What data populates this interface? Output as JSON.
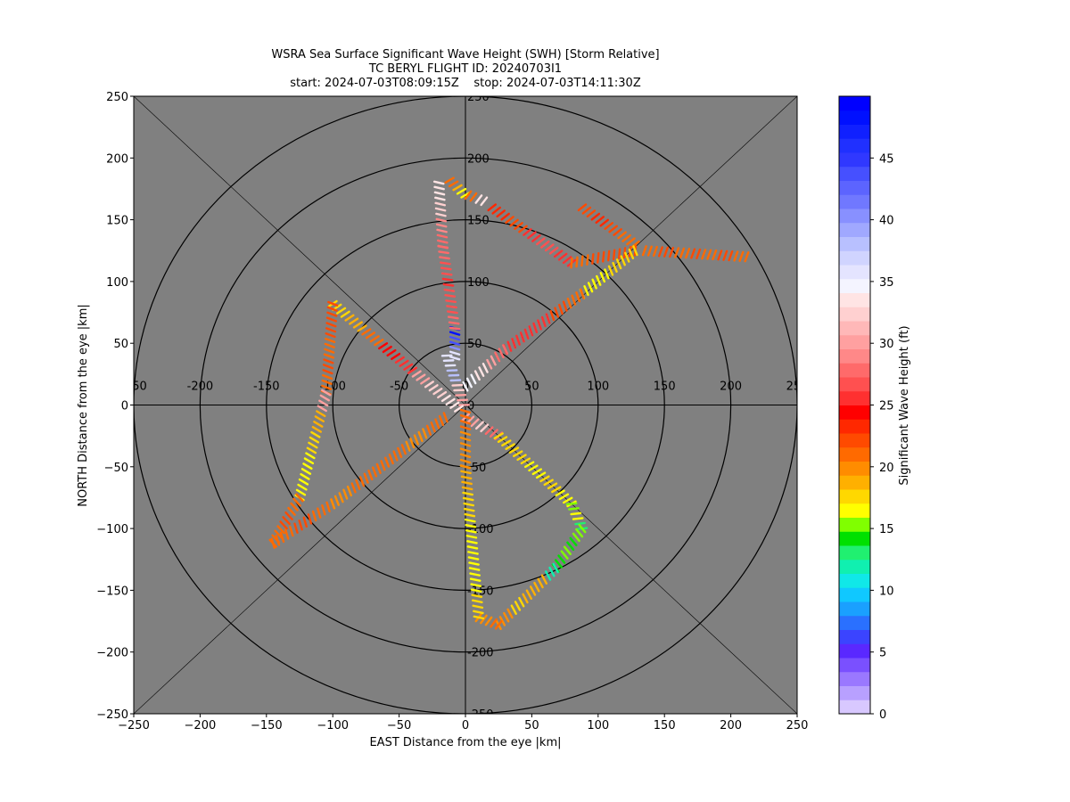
{
  "chart_data": {
    "type": "scatter",
    "title_lines": [
      "WSRA Sea Surface Significant Wave Height (SWH) [Storm Relative]",
      "TC BERYL FLIGHT ID: 20240703I1",
      "start: 2024-07-03T08:09:15Z    stop: 2024-07-03T14:11:30Z"
    ],
    "xlabel": "EAST Distance from the eye |km|",
    "ylabel": "NORTH Distance from the eye |km|",
    "xlim": [
      -250,
      250
    ],
    "ylim": [
      -250,
      250
    ],
    "xticks": [
      -250,
      -200,
      -150,
      -100,
      -50,
      0,
      50,
      100,
      150,
      200,
      250
    ],
    "yticks": [
      -250,
      -200,
      -150,
      -100,
      -50,
      0,
      50,
      100,
      150,
      200,
      250
    ],
    "range_rings_km": [
      50,
      100,
      150,
      200,
      250
    ],
    "background_color": "#808080",
    "colorbar": {
      "label": "Significant Wave Height (ft)",
      "ticks": [
        0,
        5,
        10,
        15,
        20,
        25,
        30,
        35,
        40,
        45
      ],
      "range": [
        0,
        50
      ],
      "colors": [
        "#d8c8ff",
        "#b8a0ff",
        "#9a78ff",
        "#7a50ff",
        "#5a28ff",
        "#3b44ff",
        "#2a70ff",
        "#1aa0ff",
        "#10c8ff",
        "#10e8e8",
        "#10f0b0",
        "#20f070",
        "#00e000",
        "#80ff00",
        "#ffff00",
        "#ffd800",
        "#ffb000",
        "#ff8c00",
        "#ff6a00",
        "#ff4a00",
        "#ff2800",
        "#ff0000",
        "#ff3030",
        "#ff5050",
        "#ff6a6a",
        "#ff8888",
        "#ffa0a0",
        "#ffb8b8",
        "#ffd0d0",
        "#ffe4e4",
        "#f4f4ff",
        "#e4e4ff",
        "#d0d4ff",
        "#b8c0ff",
        "#a0a8ff",
        "#8890ff",
        "#7078ff",
        "#5c64ff",
        "#4650ff",
        "#3038ff",
        "#2030ff",
        "#1020ff",
        "#0010ff",
        "#0000ff"
      ]
    },
    "track_segments": [
      {
        "from": [
          -1,
          0
        ],
        "to": [
          -14,
          40
        ],
        "values": [
          30,
          32,
          38,
          36
        ]
      },
      {
        "from": [
          -8,
          38
        ],
        "to": [
          -8,
          62
        ],
        "values": [
          36,
          40,
          44,
          48
        ]
      },
      {
        "from": [
          -8,
          62
        ],
        "to": [
          -17,
          128
        ],
        "values": [
          28,
          27,
          27,
          26,
          27,
          28
        ]
      },
      {
        "from": [
          -17,
          128
        ],
        "to": [
          -20,
          180
        ],
        "values": [
          28,
          29,
          32,
          34
        ]
      },
      {
        "from": [
          -12,
          182
        ],
        "to": [
          0,
          170
        ],
        "values": [
          21,
          19,
          16
        ]
      },
      {
        "from": [
          2,
          170
        ],
        "to": [
          14,
          165
        ],
        "values": [
          21,
          33
        ]
      },
      {
        "from": [
          20,
          160
        ],
        "to": [
          80,
          115
        ],
        "values": [
          23,
          22,
          25,
          27,
          26
        ]
      },
      {
        "from": [
          80,
          115
        ],
        "to": [
          128,
          125
        ],
        "values": [
          21,
          22,
          22
        ]
      },
      {
        "from": [
          135,
          125
        ],
        "to": [
          212,
          120
        ],
        "values": [
          21,
          22,
          21,
          22,
          21,
          22,
          21
        ]
      },
      {
        "from": [
          88,
          160
        ],
        "to": [
          128,
          130
        ],
        "values": [
          22,
          23,
          22,
          21
        ]
      },
      {
        "from": [
          128,
          125
        ],
        "to": [
          88,
          90
        ],
        "values": [
          18,
          18,
          17,
          17
        ]
      },
      {
        "from": [
          88,
          90
        ],
        "to": [
          30,
          45
        ],
        "values": [
          21,
          22,
          25,
          26,
          26
        ]
      },
      {
        "from": [
          30,
          45
        ],
        "to": [
          0,
          15
        ],
        "values": [
          28,
          30,
          33,
          35
        ]
      },
      {
        "from": [
          -5,
          -3
        ],
        "to": [
          -40,
          28
        ],
        "values": [
          34,
          32,
          30
        ]
      },
      {
        "from": [
          -40,
          28
        ],
        "to": [
          -100,
          82
        ],
        "values": [
          26,
          24,
          21,
          19,
          18
        ]
      },
      {
        "from": [
          -100,
          82
        ],
        "to": [
          -105,
          10
        ],
        "values": [
          22,
          22,
          21,
          22,
          21
        ]
      },
      {
        "from": [
          -105,
          10
        ],
        "to": [
          -125,
          -75
        ],
        "values": [
          30,
          19,
          18,
          17,
          16
        ]
      },
      {
        "from": [
          -125,
          -75
        ],
        "to": [
          -145,
          -112
        ],
        "values": [
          21,
          22,
          21
        ]
      },
      {
        "from": [
          -145,
          -112
        ],
        "to": [
          -100,
          -80
        ],
        "values": [
          21,
          22,
          21
        ]
      },
      {
        "from": [
          -100,
          -80
        ],
        "to": [
          -15,
          -10
        ],
        "values": [
          20,
          21,
          21,
          21,
          20,
          21
        ]
      },
      {
        "from": [
          0,
          -10
        ],
        "to": [
          25,
          -25
        ],
        "values": [
          30,
          32,
          28
        ]
      },
      {
        "from": [
          25,
          -25
        ],
        "to": [
          80,
          -80
        ],
        "values": [
          18,
          18,
          17,
          18,
          16
        ]
      },
      {
        "from": [
          80,
          -80
        ],
        "to": [
          88,
          -100
        ],
        "values": [
          15,
          16,
          13
        ]
      },
      {
        "from": [
          88,
          -100
        ],
        "to": [
          68,
          -132
        ],
        "values": [
          15,
          14,
          15,
          14
        ]
      },
      {
        "from": [
          68,
          -132
        ],
        "to": [
          25,
          -178
        ],
        "values": [
          12,
          19,
          19,
          18,
          20
        ]
      },
      {
        "from": [
          25,
          -178
        ],
        "to": [
          10,
          -172
        ],
        "values": [
          21,
          20
        ]
      },
      {
        "from": [
          10,
          -172
        ],
        "to": [
          0,
          -50
        ],
        "values": [
          18,
          17,
          16,
          17,
          18,
          19
        ]
      },
      {
        "from": [
          0,
          -50
        ],
        "to": [
          0,
          -5
        ],
        "values": [
          20,
          20,
          21
        ]
      }
    ]
  }
}
